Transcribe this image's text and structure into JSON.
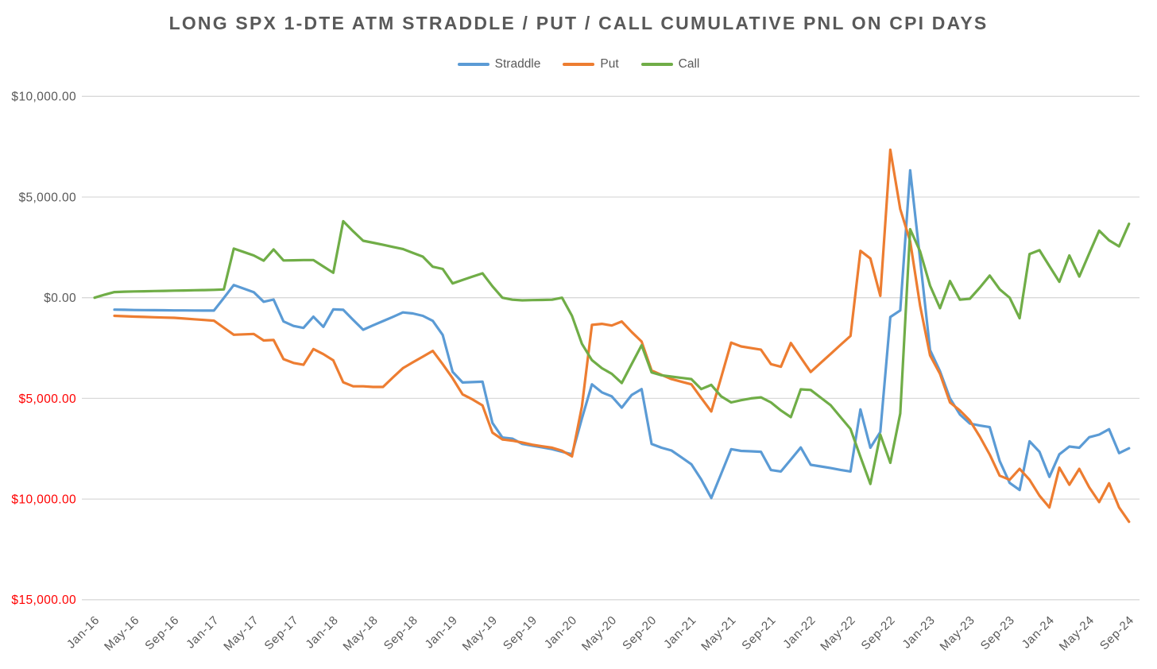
{
  "title": "LONG SPX 1-DTE ATM STRADDLE / PUT / CALL CUMULATIVE PNL ON CPI DAYS",
  "colors": {
    "straddle": "#5B9BD5",
    "put": "#ED7D31",
    "call": "#70AD47",
    "axis_text": "#595959",
    "negative_axis_text": "#FF0000",
    "gridline": "#D9D9D9",
    "background": "#FFFFFF"
  },
  "chart_data": {
    "type": "line",
    "title": "LONG SPX 1-DTE ATM STRADDLE / PUT / CALL CUMULATIVE PNL ON CPI DAYS",
    "xlabel": "",
    "ylabel": "",
    "grid": "horizontal",
    "legend_position": "top",
    "ylim": [
      -15000,
      10000
    ],
    "y_ticks": [
      {
        "label": "$10,000.00",
        "value": 10000,
        "negative": false
      },
      {
        "label": "$5,000.00",
        "value": 5000,
        "negative": false
      },
      {
        "label": "$0.00",
        "value": 0,
        "negative": false
      },
      {
        "label": "$5,000.00",
        "value": -5000,
        "negative": true
      },
      {
        "label": "$10,000.00",
        "value": -10000,
        "negative": true
      },
      {
        "label": "$15,000.00",
        "value": -15000,
        "negative": true
      }
    ],
    "x_unit": "month",
    "x_start_month": "Jan-16",
    "x_end_month": "Sep-24",
    "months_total": 105,
    "x_tick_every_months": 4,
    "x_tick_labels": [
      "Jan-16",
      "May-16",
      "Sep-16",
      "Jan-17",
      "May-17",
      "Sep-17",
      "Jan-18",
      "May-18",
      "Sep-18",
      "Jan-19",
      "May-19",
      "Sep-19",
      "Jan-20",
      "May-20",
      "Sep-20",
      "Jan-21",
      "May-21",
      "Sep-21",
      "Jan-22",
      "May-22",
      "Sep-22",
      "Jan-23",
      "May-23",
      "Sep-23",
      "Jan-24",
      "May-24",
      "Sep-24"
    ],
    "series": [
      {
        "name": "Straddle",
        "color": "#5B9BD5",
        "start_month_index": 2,
        "values": [
          -590,
          -600,
          -610,
          -615,
          -620,
          -625,
          -630,
          -633,
          -636,
          -638,
          -640,
          -10,
          630,
          450,
          275,
          -200,
          -90,
          -1180,
          -1400,
          -1500,
          -945,
          -1450,
          -580,
          -600,
          -1100,
          -1590,
          -1370,
          -1160,
          -950,
          -730,
          -780,
          -900,
          -1150,
          -1850,
          -3680,
          -4210,
          -4190,
          -4170,
          -6220,
          -6940,
          -7000,
          -7260,
          -7350,
          -7430,
          -7520,
          -7650,
          -7780,
          -6000,
          -4300,
          -4700,
          -4900,
          -5460,
          -4830,
          -4540,
          -7260,
          -7450,
          -7590,
          -7930,
          -8270,
          -9030,
          -9950,
          -8740,
          -7520,
          -7610,
          -7630,
          -7650,
          -8560,
          -8630,
          -8040,
          -7440,
          -8300,
          -8380,
          -8460,
          -8550,
          -8630,
          -5550,
          -7450,
          -6670,
          -960,
          -630,
          6330,
          1900,
          -2600,
          -3650,
          -5000,
          -5800,
          -6250,
          -6350,
          -6430,
          -8110,
          -9200,
          -9550,
          -7130,
          -7650,
          -8900,
          -7780,
          -7390,
          -7450,
          -6930,
          -6800,
          -6530,
          -7720,
          -7480
        ]
      },
      {
        "name": "Put",
        "color": "#ED7D31",
        "start_month_index": 2,
        "values": [
          -900,
          -920,
          -940,
          -955,
          -970,
          -985,
          -1000,
          -1035,
          -1070,
          -1105,
          -1140,
          -1490,
          -1840,
          -1820,
          -1800,
          -2125,
          -2100,
          -3050,
          -3240,
          -3330,
          -2550,
          -2800,
          -3110,
          -4200,
          -4400,
          -4400,
          -4430,
          -4430,
          -3960,
          -3500,
          -3210,
          -2930,
          -2640,
          -3300,
          -4000,
          -4800,
          -5050,
          -5350,
          -6700,
          -7040,
          -7100,
          -7190,
          -7300,
          -7380,
          -7450,
          -7600,
          -7880,
          -5400,
          -1350,
          -1300,
          -1380,
          -1180,
          -1700,
          -2180,
          -3620,
          -3830,
          -4040,
          -4170,
          -4300,
          -4980,
          -5650,
          -3950,
          -2230,
          -2420,
          -2500,
          -2580,
          -3300,
          -3430,
          -2250,
          -2970,
          -3690,
          -3240,
          -2790,
          -2340,
          -1900,
          2330,
          1950,
          90,
          7350,
          4400,
          2800,
          -400,
          -2860,
          -3780,
          -5200,
          -5600,
          -6100,
          -6900,
          -7790,
          -8840,
          -9040,
          -8500,
          -9040,
          -9830,
          -10420,
          -8440,
          -9290,
          -8500,
          -9420,
          -10150,
          -9220,
          -10420,
          -11130
        ]
      },
      {
        "name": "Call",
        "color": "#70AD47",
        "start_month_index": 0,
        "values": [
          0,
          150,
          280,
          300,
          310,
          320,
          330,
          340,
          350,
          360,
          370,
          380,
          390,
          410,
          2440,
          2270,
          2100,
          1840,
          2400,
          1850,
          1860,
          1870,
          1870,
          1550,
          1240,
          3800,
          3300,
          2830,
          2730,
          2630,
          2520,
          2420,
          2230,
          2040,
          1540,
          1430,
          710,
          880,
          1050,
          1210,
          570,
          0,
          -100,
          -130,
          -120,
          -110,
          -100,
          0,
          -900,
          -2290,
          -3100,
          -3500,
          -3780,
          -4240,
          -3300,
          -2360,
          -3710,
          -3850,
          -3920,
          -3980,
          -4040,
          -4540,
          -4330,
          -4900,
          -5200,
          -5090,
          -5000,
          -4950,
          -5200,
          -5600,
          -5930,
          -4550,
          -4580,
          -4960,
          -5340,
          -5930,
          -6520,
          -7900,
          -9250,
          -6800,
          -8200,
          -5750,
          3400,
          2300,
          600,
          -520,
          830,
          -100,
          -50,
          500,
          1100,
          420,
          0,
          -1020,
          2170,
          2360,
          1570,
          790,
          2100,
          1050,
          2200,
          3330,
          2850,
          2550,
          3670
        ]
      }
    ]
  }
}
